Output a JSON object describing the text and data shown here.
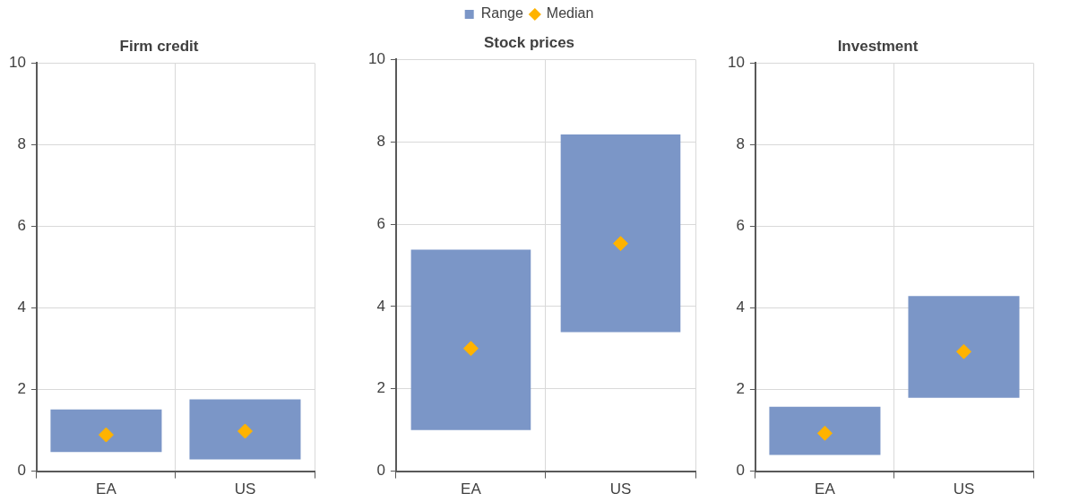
{
  "chart_data": [
    {
      "type": "bar",
      "title": "Firm credit",
      "categories": [
        "EA",
        "US"
      ],
      "ylim": [
        0,
        10
      ],
      "yticks": [
        0,
        2,
        4,
        6,
        8,
        10
      ],
      "grid": true,
      "series": [
        {
          "type": "bar",
          "color": "#7b96c7",
          "base": [
            0.47,
            0.29
          ],
          "values": [
            1.04,
            1.47
          ]
        },
        {
          "type": "scatter",
          "color": "#ffb300",
          "marker": "diamond",
          "x": [
            "EA",
            "US"
          ],
          "values": [
            0.89,
            0.98
          ]
        }
      ]
    },
    {
      "type": "bar",
      "title": "Stock prices",
      "categories": [
        "EA",
        "US"
      ],
      "ylim": [
        0,
        10
      ],
      "yticks": [
        0,
        2,
        4,
        6,
        8,
        10
      ],
      "grid": true,
      "legend": "top",
      "series": [
        {
          "type": "bar",
          "name": "Range",
          "color": "#7b96c7",
          "base": [
            1.0,
            3.38
          ],
          "values": [
            4.38,
            4.8
          ]
        },
        {
          "type": "scatter",
          "name": "Median",
          "color": "#ffb300",
          "marker": "diamond",
          "x": [
            "EA",
            "US"
          ],
          "values": [
            2.98,
            5.53
          ]
        }
      ]
    },
    {
      "type": "bar",
      "title": "Investment",
      "categories": [
        "EA",
        "US"
      ],
      "ylim": [
        0,
        10
      ],
      "yticks": [
        0,
        2,
        4,
        6,
        8,
        10
      ],
      "grid": true,
      "series": [
        {
          "type": "bar",
          "color": "#7b96c7",
          "base": [
            0.4,
            1.8
          ],
          "values": [
            1.18,
            2.49
          ]
        },
        {
          "type": "scatter",
          "color": "#ffb300",
          "marker": "diamond",
          "x": [
            "EA",
            "US"
          ],
          "values": [
            0.93,
            2.93
          ]
        }
      ]
    }
  ]
}
